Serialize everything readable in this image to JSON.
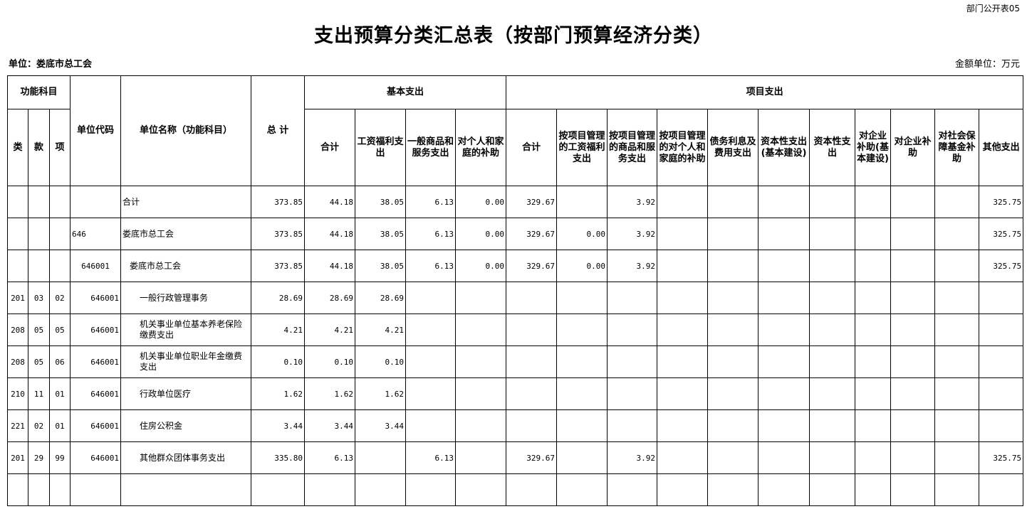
{
  "form_no": "部门公开表05",
  "title": "支出预算分类汇总表（按部门预算经济分类）",
  "unit_label": "单位：娄底市总工会",
  "amount_unit": "金额单位：万元",
  "headers": {
    "func_subject": "功能科目",
    "lei": "类",
    "kuan": "款",
    "xiang": "项",
    "unit_code": "单位代码",
    "unit_name": "单位名称（功能科目）",
    "total": "总  计",
    "basic": "基本支出",
    "project": "项目支出",
    "b_sum": "合计",
    "b_wage": "工资福利支出",
    "b_goods": "一般商品和服务支出",
    "b_subsidy": "对个人和家庭的补助",
    "p_sum": "合计",
    "p_wage": "按项目管理的工资福利支出",
    "p_goods": "按项目管理的商品和服务支出",
    "p_subsidy": "按项目管理的对个人和家庭的补助",
    "p_debt": "债务利息及费用支出",
    "p_cap_build": "资本性支出(基本建设)",
    "p_cap": "资本性支出",
    "p_ent_build": "对企业补助(基本建设)",
    "p_ent": "对企业补助",
    "p_social": "对社会保障基金补助",
    "p_other": "其他支出"
  },
  "rows": [
    {
      "lei": "",
      "kuan": "",
      "xiang": "",
      "code": "",
      "name": "合计",
      "total": "373.85",
      "b_sum": "44.18",
      "b_wage": "38.05",
      "b_goods": "6.13",
      "b_subsidy": "0.00",
      "p_sum": "329.67",
      "p_wage": "",
      "p_goods": "3.92",
      "p_subsidy": "",
      "p_debt": "",
      "p_cap_build": "",
      "p_cap": "",
      "p_ent_build": "",
      "p_ent": "",
      "p_social": "",
      "p_other": "325.75"
    },
    {
      "lei": "",
      "kuan": "",
      "xiang": "",
      "code": "646",
      "name": "娄底市总工会",
      "total": "373.85",
      "b_sum": "44.18",
      "b_wage": "38.05",
      "b_goods": "6.13",
      "b_subsidy": "0.00",
      "p_sum": "329.67",
      "p_wage": "0.00",
      "p_goods": "3.92",
      "p_subsidy": "",
      "p_debt": "",
      "p_cap_build": "",
      "p_cap": "",
      "p_ent_build": "",
      "p_ent": "",
      "p_social": "",
      "p_other": "325.75"
    },
    {
      "lei": "",
      "kuan": "",
      "xiang": "",
      "code": "646001",
      "name": "娄底市总工会",
      "total": "373.85",
      "b_sum": "44.18",
      "b_wage": "38.05",
      "b_goods": "6.13",
      "b_subsidy": "0.00",
      "p_sum": "329.67",
      "p_wage": "0.00",
      "p_goods": "3.92",
      "p_subsidy": "",
      "p_debt": "",
      "p_cap_build": "",
      "p_cap": "",
      "p_ent_build": "",
      "p_ent": "",
      "p_social": "",
      "p_other": "325.75"
    },
    {
      "lei": "201",
      "kuan": "03",
      "xiang": "02",
      "code": "646001",
      "name": "一般行政管理事务",
      "total": "28.69",
      "b_sum": "28.69",
      "b_wage": "28.69",
      "b_goods": "",
      "b_subsidy": "",
      "p_sum": "",
      "p_wage": "",
      "p_goods": "",
      "p_subsidy": "",
      "p_debt": "",
      "p_cap_build": "",
      "p_cap": "",
      "p_ent_build": "",
      "p_ent": "",
      "p_social": "",
      "p_other": ""
    },
    {
      "lei": "208",
      "kuan": "05",
      "xiang": "05",
      "code": "646001",
      "name": "机关事业单位基本养老保险缴费支出",
      "total": "4.21",
      "b_sum": "4.21",
      "b_wage": "4.21",
      "b_goods": "",
      "b_subsidy": "",
      "p_sum": "",
      "p_wage": "",
      "p_goods": "",
      "p_subsidy": "",
      "p_debt": "",
      "p_cap_build": "",
      "p_cap": "",
      "p_ent_build": "",
      "p_ent": "",
      "p_social": "",
      "p_other": ""
    },
    {
      "lei": "208",
      "kuan": "05",
      "xiang": "06",
      "code": "646001",
      "name": "机关事业单位职业年金缴费支出",
      "total": "0.10",
      "b_sum": "0.10",
      "b_wage": "0.10",
      "b_goods": "",
      "b_subsidy": "",
      "p_sum": "",
      "p_wage": "",
      "p_goods": "",
      "p_subsidy": "",
      "p_debt": "",
      "p_cap_build": "",
      "p_cap": "",
      "p_ent_build": "",
      "p_ent": "",
      "p_social": "",
      "p_other": ""
    },
    {
      "lei": "210",
      "kuan": "11",
      "xiang": "01",
      "code": "646001",
      "name": "行政单位医疗",
      "total": "1.62",
      "b_sum": "1.62",
      "b_wage": "1.62",
      "b_goods": "",
      "b_subsidy": "",
      "p_sum": "",
      "p_wage": "",
      "p_goods": "",
      "p_subsidy": "",
      "p_debt": "",
      "p_cap_build": "",
      "p_cap": "",
      "p_ent_build": "",
      "p_ent": "",
      "p_social": "",
      "p_other": ""
    },
    {
      "lei": "221",
      "kuan": "02",
      "xiang": "01",
      "code": "646001",
      "name": "住房公积金",
      "total": "3.44",
      "b_sum": "3.44",
      "b_wage": "3.44",
      "b_goods": "",
      "b_subsidy": "",
      "p_sum": "",
      "p_wage": "",
      "p_goods": "",
      "p_subsidy": "",
      "p_debt": "",
      "p_cap_build": "",
      "p_cap": "",
      "p_ent_build": "",
      "p_ent": "",
      "p_social": "",
      "p_other": ""
    },
    {
      "lei": "201",
      "kuan": "29",
      "xiang": "99",
      "code": "646001",
      "name": "其他群众团体事务支出",
      "total": "335.80",
      "b_sum": "6.13",
      "b_wage": "",
      "b_goods": "6.13",
      "b_subsidy": "",
      "p_sum": "329.67",
      "p_wage": "",
      "p_goods": "3.92",
      "p_subsidy": "",
      "p_debt": "",
      "p_cap_build": "",
      "p_cap": "",
      "p_ent_build": "",
      "p_ent": "",
      "p_social": "",
      "p_other": "325.75"
    },
    {
      "lei": "",
      "kuan": "",
      "xiang": "",
      "code": "",
      "name": "",
      "total": "",
      "b_sum": "",
      "b_wage": "",
      "b_goods": "",
      "b_subsidy": "",
      "p_sum": "",
      "p_wage": "",
      "p_goods": "",
      "p_subsidy": "",
      "p_debt": "",
      "p_cap_build": "",
      "p_cap": "",
      "p_ent_build": "",
      "p_ent": "",
      "p_social": "",
      "p_other": ""
    }
  ]
}
